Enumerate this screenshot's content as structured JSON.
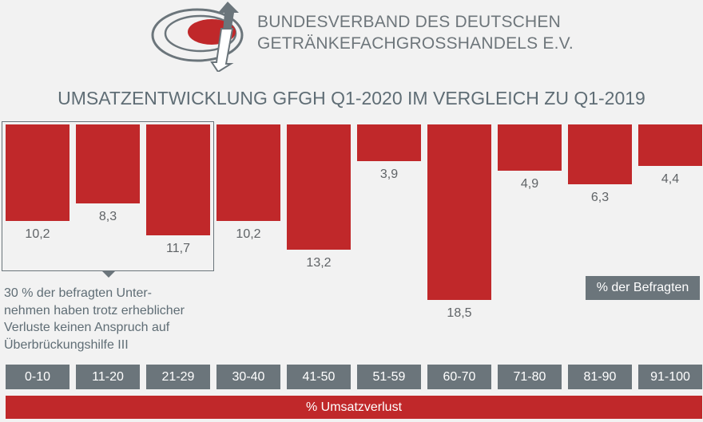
{
  "header": {
    "org_line1": "BUNDESVERBAND DES DEUTSCHEN",
    "org_line2": "GETRÄNKEFACHGROSSHANDELS E.V."
  },
  "chart_data": {
    "type": "bar",
    "title": "UMSATZENTWICKLUNG GFGH Q1-2020 IM VERGLEICH ZU Q1-2019",
    "categories": [
      "0-10",
      "11-20",
      "21-29",
      "30-40",
      "41-50",
      "51-59",
      "60-70",
      "71-80",
      "81-90",
      "91-100"
    ],
    "values": [
      10.2,
      8.3,
      11.7,
      10.2,
      13.2,
      3.9,
      18.5,
      4.9,
      6.3,
      4.4
    ],
    "value_labels": [
      "10,2",
      "8,3",
      "11,7",
      "10,2",
      "13,2",
      "3,9",
      "18,5",
      "4,9",
      "6,3",
      "4,4"
    ],
    "xlabel": "% Umsatzverlust",
    "ylabel": "% der Befragten",
    "orientation": "bars hanging downward from top",
    "bar_color": "#c0282a",
    "annotation": "30 % der befragten Unter- nehmen haben trotz erheblicher Verluste keinen Anspruch auf Überbrückungshilfe III"
  },
  "note_lines": [
    "30 % der befragten Unter-",
    "nehmen haben trotz erheblicher",
    "Verluste keinen Anspruch auf",
    "Überbrückungshilfe III"
  ]
}
